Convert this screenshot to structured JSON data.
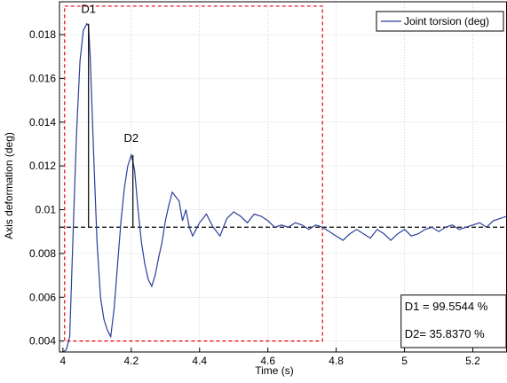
{
  "chart_data": {
    "type": "line",
    "xlabel": "Time (s)",
    "ylabel": "Axis deformation (deg)",
    "xlim": [
      3.99,
      5.3
    ],
    "ylim": [
      0.0035,
      0.0195
    ],
    "grid": true,
    "legend_position": "top-right",
    "x_ticks": [
      4,
      4.2,
      4.4,
      4.6,
      4.8,
      5,
      5.2
    ],
    "y_ticks": [
      0.004,
      0.006,
      0.008,
      0.01,
      0.012,
      0.014,
      0.016,
      0.018
    ],
    "y_tick_labels": [
      "0.004",
      "0.006",
      "0.008",
      "0.01",
      "0.012",
      "0.014",
      "0.016",
      "0.018"
    ],
    "series": [
      {
        "name": "Joint torsion (deg)",
        "color": "#2c3e9a",
        "x": [
          4.0,
          4.01,
          4.02,
          4.03,
          4.04,
          4.05,
          4.06,
          4.07,
          4.075,
          4.08,
          4.09,
          4.1,
          4.11,
          4.12,
          4.13,
          4.14,
          4.15,
          4.16,
          4.17,
          4.18,
          4.19,
          4.2,
          4.205,
          4.21,
          4.22,
          4.23,
          4.24,
          4.25,
          4.26,
          4.27,
          4.28,
          4.29,
          4.3,
          4.31,
          4.32,
          4.33,
          4.34,
          4.35,
          4.36,
          4.37,
          4.38,
          4.4,
          4.42,
          4.44,
          4.46,
          4.48,
          4.5,
          4.52,
          4.54,
          4.56,
          4.58,
          4.6,
          4.62,
          4.64,
          4.66,
          4.68,
          4.7,
          4.72,
          4.74,
          4.76,
          4.78,
          4.8,
          4.82,
          4.84,
          4.86,
          4.88,
          4.9,
          4.92,
          4.94,
          4.96,
          4.98,
          5.0,
          5.02,
          5.04,
          5.06,
          5.08,
          5.1,
          5.12,
          5.14,
          5.16,
          5.18,
          5.2,
          5.22,
          5.24,
          5.26,
          5.28,
          5.3
        ],
        "values": [
          0.0035,
          0.0036,
          0.0042,
          0.009,
          0.0135,
          0.0168,
          0.0182,
          0.0185,
          0.0184,
          0.017,
          0.0125,
          0.0085,
          0.006,
          0.005,
          0.0045,
          0.0042,
          0.0055,
          0.0075,
          0.0095,
          0.011,
          0.012,
          0.0125,
          0.0122,
          0.0118,
          0.01,
          0.0085,
          0.0075,
          0.0068,
          0.0065,
          0.007,
          0.0078,
          0.0085,
          0.0095,
          0.0102,
          0.0108,
          0.0106,
          0.0104,
          0.0095,
          0.01,
          0.0092,
          0.0088,
          0.0094,
          0.0098,
          0.0092,
          0.0088,
          0.0096,
          0.0099,
          0.0097,
          0.0094,
          0.0098,
          0.0097,
          0.0095,
          0.0092,
          0.0093,
          0.0092,
          0.0094,
          0.0093,
          0.0091,
          0.0093,
          0.0092,
          0.009,
          0.0088,
          0.0086,
          0.0089,
          0.0091,
          0.0089,
          0.0087,
          0.0091,
          0.0089,
          0.0086,
          0.0089,
          0.0091,
          0.0088,
          0.0089,
          0.0091,
          0.0092,
          0.009,
          0.0092,
          0.0093,
          0.0091,
          0.0092,
          0.0093,
          0.0094,
          0.0092,
          0.0095,
          0.0096,
          0.0097
        ]
      }
    ],
    "reference_line": {
      "y": 0.0092,
      "style": "dashed",
      "color": "#000000"
    },
    "region_box": {
      "x": [
        4.005,
        4.76
      ],
      "y": [
        0.004,
        0.0193
      ],
      "style": "dashed",
      "color": "#e8000d"
    },
    "annotations": [
      {
        "text": "D1",
        "x": 4.075,
        "y": 0.0185,
        "y_base": 0.0092,
        "label_x": 4.075,
        "label_y": 0.019
      },
      {
        "text": "D2",
        "x": 4.205,
        "y": 0.0125,
        "y_base": 0.0092,
        "label_x": 4.2,
        "label_y": 0.0131
      }
    ],
    "info_box": {
      "x": [
        4.99,
        5.3
      ],
      "y": [
        0.0037,
        0.0061
      ],
      "lines": [
        "D1 = 99.5544 %",
        "D2= 35.8370 %"
      ]
    }
  }
}
